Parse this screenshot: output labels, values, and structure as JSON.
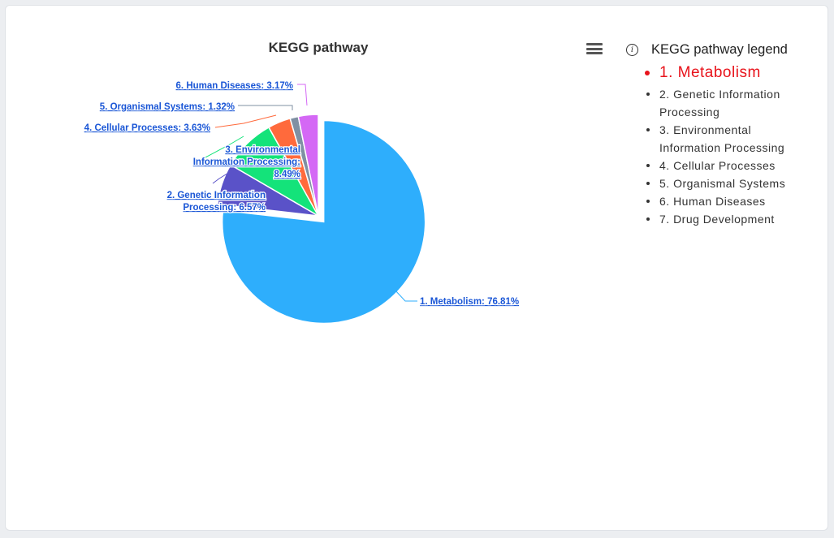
{
  "title": "KEGG pathway",
  "legend": {
    "title": "KEGG pathway legend",
    "items": [
      {
        "label": "1. Metabolism"
      },
      {
        "label": "2. Genetic Information Processing"
      },
      {
        "label": "3. Environmental Information Processing"
      },
      {
        "label": "4. Cellular Processes"
      },
      {
        "label": "5. Organismal Systems"
      },
      {
        "label": "6. Human Diseases"
      },
      {
        "label": "7. Drug Development"
      }
    ],
    "active_index": 0,
    "active_color": "#e8131b"
  },
  "chart_data": {
    "type": "pie",
    "title": "KEGG pathway",
    "slices": [
      {
        "label": "1. Metabolism: 76.81%",
        "name": "1. Metabolism",
        "value": 76.81,
        "color": "#2eaefc"
      },
      {
        "label": "2. Genetic Information Processing: 6.57%",
        "name": "2. Genetic Information Processing",
        "value": 6.57,
        "color": "#5a52c8"
      },
      {
        "label": "3. Environmental Information Processing: 8.49%",
        "name": "3. Environmental Information Processing",
        "value": 8.49,
        "color": "#14e37a"
      },
      {
        "label": "4. Cellular Processes: 3.63%",
        "name": "4. Cellular Processes",
        "value": 3.63,
        "color": "#ff6a3c"
      },
      {
        "label": "5. Organismal Systems: 1.32%",
        "name": "5. Organismal Systems",
        "value": 1.32,
        "color": "#7f90a3"
      },
      {
        "label": "6. Human Diseases: 3.17%",
        "name": "6. Human Diseases",
        "value": 3.17,
        "color": "#d468f5"
      }
    ],
    "exploded_index": 0
  }
}
